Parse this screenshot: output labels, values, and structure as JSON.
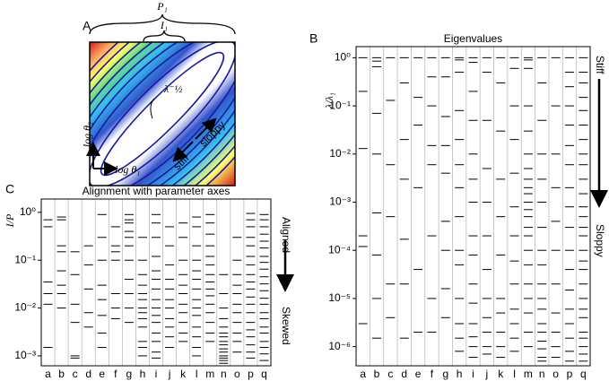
{
  "diagram": {
    "label": "A",
    "p_label": "P₁",
    "i_label": "I₁",
    "lambda_label": "λ⁻½",
    "y_axis_label": "log θ₂",
    "x_axis_label": "log θ₁",
    "stiff_label": "stiff",
    "sloppy_label": "sloppy"
  },
  "chart_data": [
    {
      "type": "spectrum",
      "panel_label": "B",
      "title": "Eigenvalues",
      "y_label": "λ/λ₁",
      "log_y": true,
      "color": "#000000",
      "annotations": [
        "Stiff",
        "Sloppy"
      ],
      "categories": [
        "a",
        "b",
        "c",
        "d",
        "e",
        "f",
        "g",
        "h",
        "i",
        "j",
        "k",
        "l",
        "m",
        "n",
        "o",
        "p",
        "q"
      ],
      "ylim": [
        4e-07,
        1.7
      ],
      "yticks": [
        {
          "value": 1,
          "label": "10⁰"
        },
        {
          "value": 0.1,
          "label": "10⁻¹"
        },
        {
          "value": 0.01,
          "label": "10⁻²"
        },
        {
          "value": 0.001,
          "label": "10⁻³"
        },
        {
          "value": 0.0001,
          "label": "10⁻⁴"
        },
        {
          "value": 1e-05,
          "label": "10⁻⁵"
        },
        {
          "value": 1e-06,
          "label": "10⁻⁶"
        }
      ],
      "values": [
        [
          1,
          0.2,
          0.013,
          0.0002,
          0.00012,
          3e-06
        ],
        [
          1,
          0.85,
          0.65,
          0.07,
          0.01,
          0.0006,
          8e-05,
          1e-05,
          1.5e-06
        ],
        [
          1,
          0.13,
          0.006,
          0.0005,
          2e-05,
          4e-06
        ],
        [
          1,
          0.3,
          0.02,
          0.003,
          0.00017,
          2e-05,
          1.5e-06
        ],
        [
          1,
          0.15,
          0.04,
          0.002,
          4e-05,
          2e-06
        ],
        [
          1,
          0.4,
          0.1,
          0.015,
          0.006,
          0.0002,
          1e-05,
          2e-06
        ],
        [
          1,
          0.4,
          0.06,
          0.015,
          0.004,
          0.0004,
          0.0001,
          1.6e-05,
          4e-06
        ],
        [
          1,
          0.9,
          0.5,
          0.08,
          0.02,
          0.006,
          0.002,
          0.0005,
          0.0001,
          5e-05,
          1e-05,
          3e-06,
          1.5e-06,
          8e-07
        ],
        [
          1,
          0.8,
          0.2,
          0.05,
          0.01,
          0.003,
          0.001,
          0.0002,
          8e-05,
          2e-05,
          8e-06,
          3e-06,
          1.6e-06,
          1e-06,
          6e-07
        ],
        [
          1,
          0.5,
          0.05,
          0.005,
          0.001,
          0.0002,
          4e-05,
          1e-05,
          4e-06,
          2e-06,
          1e-06,
          7e-07
        ],
        [
          1,
          0.3,
          0.03,
          0.003,
          0.0005,
          8e-05,
          1e-05,
          5e-06,
          2e-06,
          1e-06,
          6e-07
        ],
        [
          1,
          0.6,
          0.1,
          0.02,
          0.004,
          0.0008,
          0.0002,
          6e-05,
          2e-05,
          6e-06,
          3e-06,
          1.5e-06,
          8e-07
        ],
        [
          1,
          0.9,
          0.6,
          0.1,
          0.03,
          0.01,
          0.005,
          0.003,
          0.002,
          0.0015,
          0.001,
          0.0007,
          0.0005,
          0.0003,
          0.0002,
          0.0001,
          5e-05,
          2e-05,
          1e-05,
          5e-06,
          2e-06,
          1e-06
        ],
        [
          1,
          0.3,
          0.05,
          0.01,
          0.003,
          0.001,
          0.0003,
          0.0001,
          5e-05,
          2e-05,
          1e-05,
          6e-06,
          3e-06,
          2e-06,
          1.3e-06,
          9e-07,
          6e-07,
          5e-07
        ],
        [
          1,
          0.1,
          0.01,
          0.002,
          0.0004,
          0.0001,
          2e-05,
          5e-06,
          2e-06,
          1e-06,
          6e-07
        ],
        [
          1,
          0.5,
          0.25,
          0.1,
          0.04,
          0.015,
          0.006,
          0.002,
          0.0008,
          0.0003,
          0.0001,
          4e-05,
          1.5e-05,
          6e-06,
          3e-06,
          1.5e-06,
          8e-07,
          5e-07
        ],
        [
          1,
          0.5,
          0.3,
          0.15,
          0.08,
          0.04,
          0.02,
          0.01,
          0.006,
          0.003,
          0.0015,
          0.0008,
          0.0005,
          0.0003,
          0.0002,
          0.0001,
          6e-05,
          4e-05,
          2e-05,
          1e-05,
          6e-06,
          4e-06,
          2e-06,
          1.5e-06,
          1e-06,
          7e-07,
          5e-07
        ]
      ]
    },
    {
      "type": "spectrum",
      "panel_label": "C",
      "title": "Alignment with parameter axes",
      "y_label": "I/P",
      "log_y": true,
      "color": "#000000",
      "annotations": [
        "Aligned",
        "Skewed"
      ],
      "categories": [
        "a",
        "b",
        "c",
        "d",
        "e",
        "f",
        "g",
        "h",
        "i",
        "j",
        "k",
        "l",
        "m",
        "n",
        "o",
        "p",
        "q"
      ],
      "ylim": [
        0.00062,
        1.9
      ],
      "yticks": [
        {
          "value": 1,
          "label": "10⁰"
        },
        {
          "value": 0.1,
          "label": "10⁻¹"
        },
        {
          "value": 0.01,
          "label": "10⁻²"
        },
        {
          "value": 0.001,
          "label": "10⁻³"
        }
      ],
      "values": [
        [
          0.7,
          0.5,
          0.035,
          0.02,
          0.012,
          0.0015
        ],
        [
          0.8,
          0.7,
          0.2,
          0.15,
          0.06,
          0.03,
          0.02,
          0.01
        ],
        [
          0.15,
          0.05,
          0.012,
          0.005,
          0.001,
          0.0009
        ],
        [
          0.2,
          0.08,
          0.025,
          0.008,
          0.004
        ],
        [
          0.9,
          0.3,
          0.1,
          0.03,
          0.015,
          0.007,
          0.003,
          0.0015
        ],
        [
          0.5,
          0.2,
          0.15,
          0.1,
          0.02,
          0.01,
          0.006
        ],
        [
          0.9,
          0.7,
          0.6,
          0.4,
          0.3,
          0.2,
          0.1,
          0.04,
          0.02,
          0.01,
          0.005
        ],
        [
          0.3,
          0.1,
          0.05,
          0.03,
          0.02,
          0.015,
          0.01,
          0.008,
          0.006,
          0.004,
          0.002,
          0.0015,
          0.001
        ],
        [
          0.9,
          0.6,
          0.3,
          0.12,
          0.06,
          0.04,
          0.025,
          0.015,
          0.01,
          0.007,
          0.005,
          0.003,
          0.002,
          0.0012,
          0.0009
        ],
        [
          0.5,
          0.2,
          0.08,
          0.04,
          0.025,
          0.015,
          0.01,
          0.006,
          0.004,
          0.0025,
          0.0015
        ],
        [
          0.6,
          0.3,
          0.1,
          0.05,
          0.03,
          0.02,
          0.012,
          0.008,
          0.005,
          0.003,
          0.002
        ],
        [
          0.8,
          0.5,
          0.2,
          0.1,
          0.06,
          0.04,
          0.025,
          0.015,
          0.01,
          0.007,
          0.004,
          0.0025,
          0.0015,
          0.001
        ],
        [
          0.9,
          0.6,
          0.35,
          0.2,
          0.12,
          0.08,
          0.05,
          0.035,
          0.025,
          0.018,
          0.012,
          0.008,
          0.005,
          0.003,
          0.002
        ],
        [
          0.05,
          0.02,
          0.01,
          0.006,
          0.004,
          0.003,
          0.0025,
          0.002,
          0.0017,
          0.0014,
          0.0012,
          0.001,
          0.0009,
          0.0008,
          0.0007
        ],
        [
          0.3,
          0.1,
          0.05,
          0.03,
          0.02,
          0.012,
          0.008,
          0.005,
          0.003,
          0.002,
          0.0012
        ],
        [
          0.95,
          0.7,
          0.5,
          0.3,
          0.2,
          0.12,
          0.08,
          0.05,
          0.035,
          0.025,
          0.017,
          0.012,
          0.008,
          0.005,
          0.0035,
          0.0025,
          0.0017,
          0.0012,
          0.0009
        ],
        [
          0.9,
          0.7,
          0.5,
          0.35,
          0.25,
          0.18,
          0.12,
          0.09,
          0.065,
          0.045,
          0.032,
          0.023,
          0.016,
          0.012,
          0.008,
          0.006,
          0.004,
          0.003,
          0.002,
          0.0015,
          0.0011,
          0.0008
        ]
      ]
    }
  ]
}
